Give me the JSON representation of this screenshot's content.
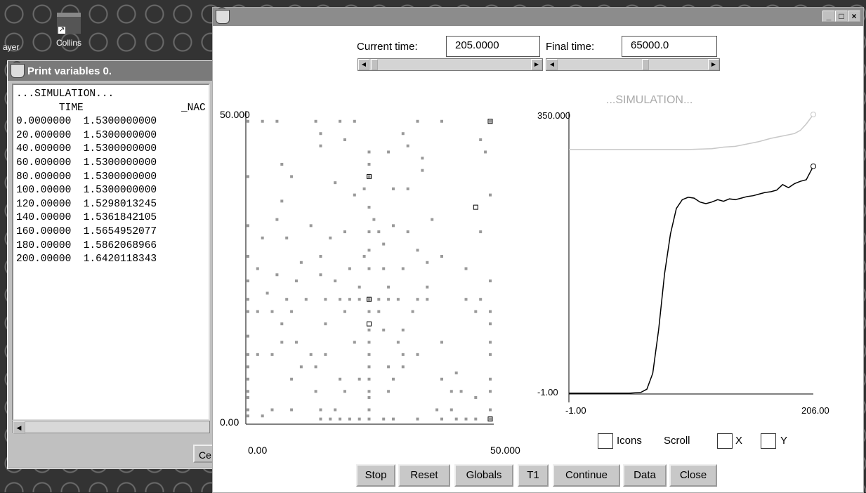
{
  "desktop": {
    "icons": [
      {
        "label": "ayer",
        "icon": "player-icon"
      },
      {
        "label": "Collins",
        "icon": "factory-shortcut-icon"
      }
    ]
  },
  "print_window": {
    "title": "Print variables 0.",
    "header": "...SIMULATION...",
    "columns": [
      "TIME",
      "_NAC"
    ],
    "rows": [
      [
        "0.0000000",
        "1.5300000000"
      ],
      [
        "20.000000",
        "1.5300000000"
      ],
      [
        "40.000000",
        "1.5300000000"
      ],
      [
        "60.000000",
        "1.5300000000"
      ],
      [
        "80.000000",
        "1.5300000000"
      ],
      [
        "100.00000",
        "1.5300000000"
      ],
      [
        "120.00000",
        "1.5298013245"
      ],
      [
        "140.00000",
        "1.5361842105"
      ],
      [
        "160.00000",
        "1.5654952077"
      ],
      [
        "180.00000",
        "1.5862068966"
      ],
      [
        "200.00000",
        "1.6420118343"
      ]
    ],
    "button_partial": "Ce"
  },
  "main_window": {
    "current_time_label": "Current time:",
    "current_time_value": "205.0000",
    "final_time_label": "Final time:",
    "final_time_value": "65000.0",
    "window_buttons": [
      "_",
      "□",
      "×"
    ],
    "scatter": {
      "y_top_label": "50.000",
      "y_bottom_label": "0.00",
      "x_left_label": "0.00",
      "x_right_label": "50.000"
    },
    "line_plot": {
      "title": "...SIMULATION...",
      "y_top_label": "350.000",
      "y_bottom_label": "-1.00",
      "x_left_label": "-1.00",
      "x_right_label": "206.00"
    },
    "checkboxes": {
      "icons_label": "Icons",
      "scroll_label": "Scroll",
      "x_label": "X",
      "y_label": "Y"
    },
    "buttons": [
      "Stop",
      "Reset",
      "Globals",
      "T1",
      "Continue",
      "Data",
      "Close"
    ]
  },
  "chart_data": [
    {
      "type": "scatter",
      "xlim": [
        0,
        50
      ],
      "ylim": [
        0,
        50
      ],
      "points": [
        [
          0,
          49
        ],
        [
          3,
          49
        ],
        [
          6,
          49
        ],
        [
          14,
          49
        ],
        [
          19,
          49
        ],
        [
          22,
          49
        ],
        [
          35,
          49
        ],
        [
          40,
          49
        ],
        [
          50,
          49
        ],
        [
          15,
          47
        ],
        [
          20,
          46
        ],
        [
          32,
          47
        ],
        [
          48,
          46
        ],
        [
          15,
          45
        ],
        [
          49,
          44
        ],
        [
          33,
          45
        ],
        [
          25,
          44
        ],
        [
          29,
          44
        ],
        [
          7,
          42
        ],
        [
          25,
          42
        ],
        [
          36,
          43
        ],
        [
          0,
          40
        ],
        [
          9,
          40
        ],
        [
          36,
          41
        ],
        [
          18,
          39
        ],
        [
          25,
          40
        ],
        [
          24,
          38
        ],
        [
          30,
          38
        ],
        [
          33,
          38
        ],
        [
          7,
          36
        ],
        [
          22,
          37
        ],
        [
          50,
          37
        ],
        [
          25,
          35
        ],
        [
          0,
          32
        ],
        [
          6,
          33
        ],
        [
          13,
          32
        ],
        [
          26,
          33
        ],
        [
          30,
          32
        ],
        [
          38,
          33
        ],
        [
          3,
          30
        ],
        [
          8,
          30
        ],
        [
          17,
          30
        ],
        [
          20,
          31
        ],
        [
          25,
          31
        ],
        [
          27,
          31
        ],
        [
          33,
          31
        ],
        [
          48,
          31
        ],
        [
          28,
          29
        ],
        [
          35,
          28
        ],
        [
          25,
          28
        ],
        [
          0,
          27
        ],
        [
          15,
          27
        ],
        [
          11,
          26
        ],
        [
          24,
          27
        ],
        [
          40,
          27
        ],
        [
          2,
          25
        ],
        [
          15,
          24
        ],
        [
          25,
          25
        ],
        [
          28,
          25
        ],
        [
          32,
          25
        ],
        [
          37,
          26
        ],
        [
          21,
          25
        ],
        [
          45,
          25
        ],
        [
          6,
          24
        ],
        [
          0,
          23
        ],
        [
          10,
          23
        ],
        [
          18,
          23
        ],
        [
          23,
          22
        ],
        [
          29,
          22
        ],
        [
          37,
          22
        ],
        [
          50,
          23
        ],
        [
          0,
          20
        ],
        [
          4,
          21
        ],
        [
          8,
          20
        ],
        [
          12,
          20
        ],
        [
          16,
          20
        ],
        [
          19,
          20
        ],
        [
          21,
          20
        ],
        [
          23,
          20
        ],
        [
          25,
          20
        ],
        [
          27,
          20
        ],
        [
          29,
          20
        ],
        [
          31,
          20
        ],
        [
          35,
          20
        ],
        [
          37,
          20
        ],
        [
          45,
          20
        ],
        [
          48,
          20
        ],
        [
          0,
          18
        ],
        [
          2,
          18
        ],
        [
          5,
          18
        ],
        [
          9,
          18
        ],
        [
          20,
          18
        ],
        [
          25,
          18
        ],
        [
          27,
          18
        ],
        [
          34,
          18
        ],
        [
          47,
          18
        ],
        [
          50,
          18
        ],
        [
          7,
          16
        ],
        [
          16,
          16
        ],
        [
          25,
          15
        ],
        [
          28,
          15
        ],
        [
          32,
          15
        ],
        [
          50,
          16
        ],
        [
          0,
          14
        ],
        [
          7,
          13
        ],
        [
          10,
          13
        ],
        [
          22,
          13
        ],
        [
          25,
          13
        ],
        [
          31,
          13
        ],
        [
          40,
          13
        ],
        [
          50,
          13
        ],
        [
          0,
          11
        ],
        [
          2,
          11
        ],
        [
          5,
          11
        ],
        [
          13,
          11
        ],
        [
          16,
          11
        ],
        [
          25,
          11
        ],
        [
          32,
          11
        ],
        [
          35,
          11
        ],
        [
          50,
          11
        ],
        [
          0,
          9
        ],
        [
          11,
          9
        ],
        [
          14,
          9
        ],
        [
          25,
          9
        ],
        [
          29,
          9
        ],
        [
          32,
          9
        ],
        [
          43,
          8
        ],
        [
          0,
          7
        ],
        [
          9,
          7
        ],
        [
          19,
          7
        ],
        [
          23,
          7
        ],
        [
          25,
          7
        ],
        [
          30,
          7
        ],
        [
          40,
          7
        ],
        [
          50,
          7
        ],
        [
          0,
          5
        ],
        [
          14,
          5
        ],
        [
          20,
          5
        ],
        [
          25,
          5
        ],
        [
          29,
          5
        ],
        [
          42,
          5
        ],
        [
          44,
          5
        ],
        [
          50,
          5
        ],
        [
          0,
          4
        ],
        [
          25,
          4
        ],
        [
          47,
          4
        ],
        [
          0,
          2
        ],
        [
          5,
          2
        ],
        [
          9,
          2
        ],
        [
          15,
          2
        ],
        [
          18,
          2
        ],
        [
          25,
          2
        ],
        [
          39,
          2
        ],
        [
          42,
          2
        ],
        [
          50,
          2
        ],
        [
          0,
          1
        ],
        [
          3,
          1
        ],
        [
          15,
          0.5
        ],
        [
          17,
          0.5
        ],
        [
          19,
          0.5
        ],
        [
          21,
          0.5
        ],
        [
          23,
          0.5
        ],
        [
          25,
          0.5
        ],
        [
          28,
          0.5
        ],
        [
          30,
          0.5
        ],
        [
          35,
          0.5
        ],
        [
          40,
          0.5
        ],
        [
          43,
          0.5
        ],
        [
          45,
          0.5
        ],
        [
          47,
          0.5
        ],
        [
          50,
          0.5
        ]
      ],
      "highlight_points": [
        [
          50,
          49
        ],
        [
          25,
          40
        ],
        [
          47,
          35
        ],
        [
          25,
          16
        ],
        [
          25,
          20
        ],
        [
          50,
          0.5
        ]
      ]
    },
    {
      "type": "line",
      "xlim": [
        -1,
        206
      ],
      "ylim": [
        -1,
        350
      ],
      "series": [
        {
          "values": [
            [
              -1,
              306
            ],
            [
              20,
              306
            ],
            [
              60,
              306
            ],
            [
              100,
              306
            ],
            [
              120,
              307
            ],
            [
              130,
              309
            ],
            [
              140,
              310
            ],
            [
              150,
              313
            ],
            [
              160,
              316
            ],
            [
              170,
              320
            ],
            [
              180,
              323
            ],
            [
              190,
              326
            ],
            [
              195,
              330
            ],
            [
              200,
              338
            ],
            [
              206,
              350
            ]
          ],
          "color": "#c8c8c8"
        },
        {
          "values": [
            [
              -1,
              0
            ],
            [
              20,
              0
            ],
            [
              50,
              0
            ],
            [
              60,
              1
            ],
            [
              65,
              5
            ],
            [
              70,
              25
            ],
            [
              75,
              80
            ],
            [
              80,
              150
            ],
            [
              85,
              200
            ],
            [
              90,
              232
            ],
            [
              95,
              243
            ],
            [
              100,
              246
            ],
            [
              105,
              245
            ],
            [
              110,
              240
            ],
            [
              115,
              238
            ],
            [
              120,
              240
            ],
            [
              125,
              243
            ],
            [
              130,
              241
            ],
            [
              135,
              244
            ],
            [
              140,
              243
            ],
            [
              145,
              245
            ],
            [
              150,
              247
            ],
            [
              155,
              248
            ],
            [
              160,
              250
            ],
            [
              165,
              252
            ],
            [
              170,
              253
            ],
            [
              175,
              255
            ],
            [
              180,
              262
            ],
            [
              185,
              258
            ],
            [
              190,
              263
            ],
            [
              195,
              266
            ],
            [
              200,
              268
            ],
            [
              206,
              285
            ]
          ],
          "color": "#000000"
        }
      ]
    }
  ]
}
